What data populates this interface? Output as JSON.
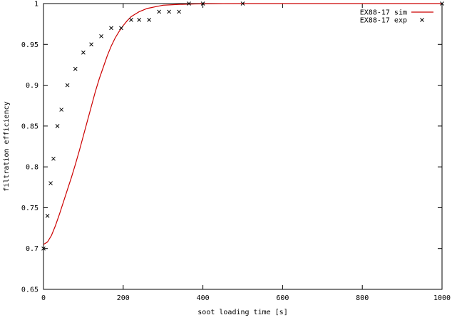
{
  "chart_data": {
    "type": "line",
    "title": "",
    "xlabel": "soot loading time [s]",
    "ylabel": "filtration efficiency",
    "xlim": [
      0,
      1000
    ],
    "ylim": [
      0.65,
      1.0
    ],
    "x_ticks": [
      "0",
      "200",
      "400",
      "600",
      "800",
      "1000"
    ],
    "y_ticks": [
      "0.65",
      "0.7",
      "0.75",
      "0.8",
      "0.85",
      "0.9",
      "0.95",
      "1"
    ],
    "legend_position": "top-right",
    "grid": false,
    "series": [
      {
        "name": "EX88-17 sim",
        "kind": "line",
        "color": "#cc0000",
        "x": [
          0,
          10,
          20,
          30,
          40,
          50,
          60,
          70,
          80,
          90,
          100,
          110,
          120,
          130,
          140,
          150,
          160,
          170,
          180,
          190,
          200,
          210,
          220,
          230,
          240,
          250,
          260,
          270,
          280,
          290,
          300,
          320,
          340,
          360,
          380,
          400,
          450,
          500,
          600,
          700,
          800,
          900,
          1000
        ],
        "y": [
          0.705,
          0.708,
          0.716,
          0.728,
          0.742,
          0.757,
          0.772,
          0.787,
          0.803,
          0.82,
          0.838,
          0.856,
          0.874,
          0.892,
          0.908,
          0.922,
          0.936,
          0.948,
          0.958,
          0.966,
          0.973,
          0.979,
          0.984,
          0.987,
          0.99,
          0.992,
          0.994,
          0.995,
          0.996,
          0.997,
          0.998,
          0.9985,
          0.999,
          0.9992,
          0.9995,
          0.9997,
          0.9999,
          1.0,
          1.0,
          1.0,
          1.0,
          1.0,
          1.0
        ]
      },
      {
        "name": "EX88-17 exp",
        "kind": "points",
        "color": "#000000",
        "x": [
          0,
          10,
          18,
          25,
          35,
          45,
          60,
          80,
          100,
          120,
          145,
          170,
          195,
          220,
          240,
          265,
          290,
          315,
          340,
          365,
          400,
          500,
          1000
        ],
        "y": [
          0.7,
          0.74,
          0.78,
          0.81,
          0.85,
          0.87,
          0.9,
          0.92,
          0.94,
          0.95,
          0.96,
          0.97,
          0.97,
          0.98,
          0.98,
          0.98,
          0.99,
          0.99,
          0.99,
          1.0,
          1.0,
          1.0,
          1.0
        ]
      }
    ]
  }
}
